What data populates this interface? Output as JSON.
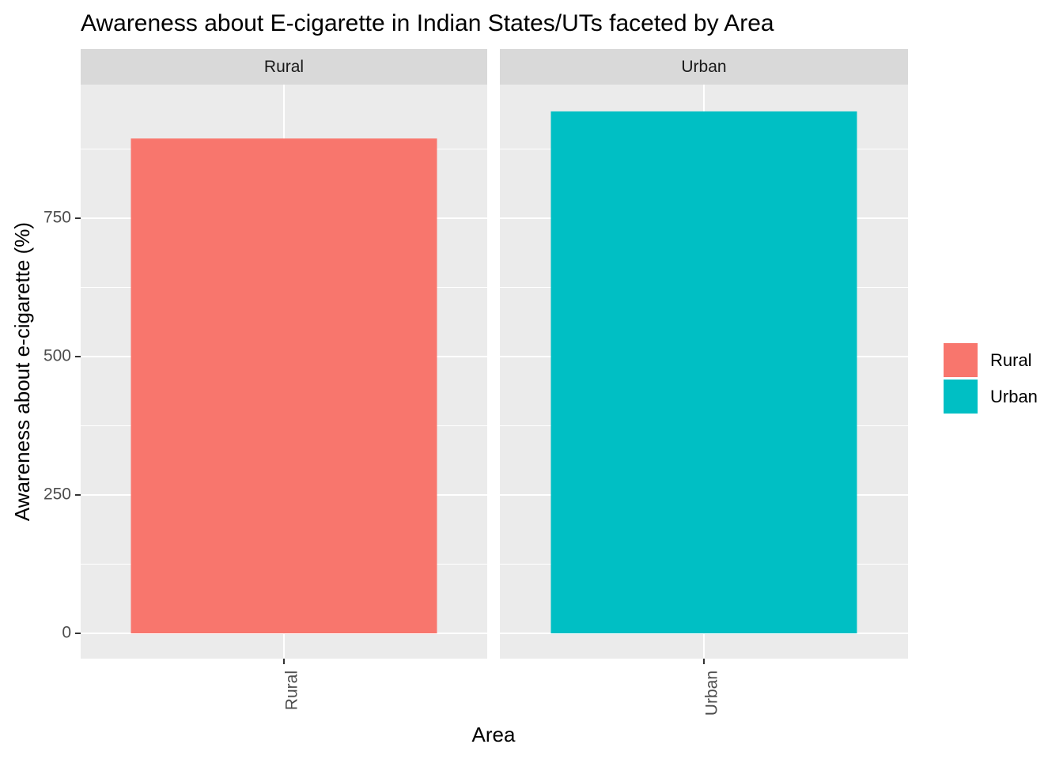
{
  "chart_data": {
    "type": "bar",
    "title": "Awareness about E-cigarette in Indian States/UTs faceted by Area",
    "x_label": "Area",
    "y_label": "Awareness about e-cigarette (%)",
    "categories": [
      "Rural",
      "Urban"
    ],
    "series": [
      {
        "name": "Rural",
        "color": "#F8766D",
        "values": [
          894,
          null
        ]
      },
      {
        "name": "Urban",
        "color": "#00BFC4",
        "values": [
          null,
          943
        ]
      }
    ],
    "ylim": [
      -45.7,
      991.4
    ],
    "yticks": [
      0,
      250,
      500,
      750
    ],
    "y_minor_ticks": [
      125,
      375,
      625,
      875
    ],
    "grid": true,
    "facet": true,
    "legend": "right"
  }
}
